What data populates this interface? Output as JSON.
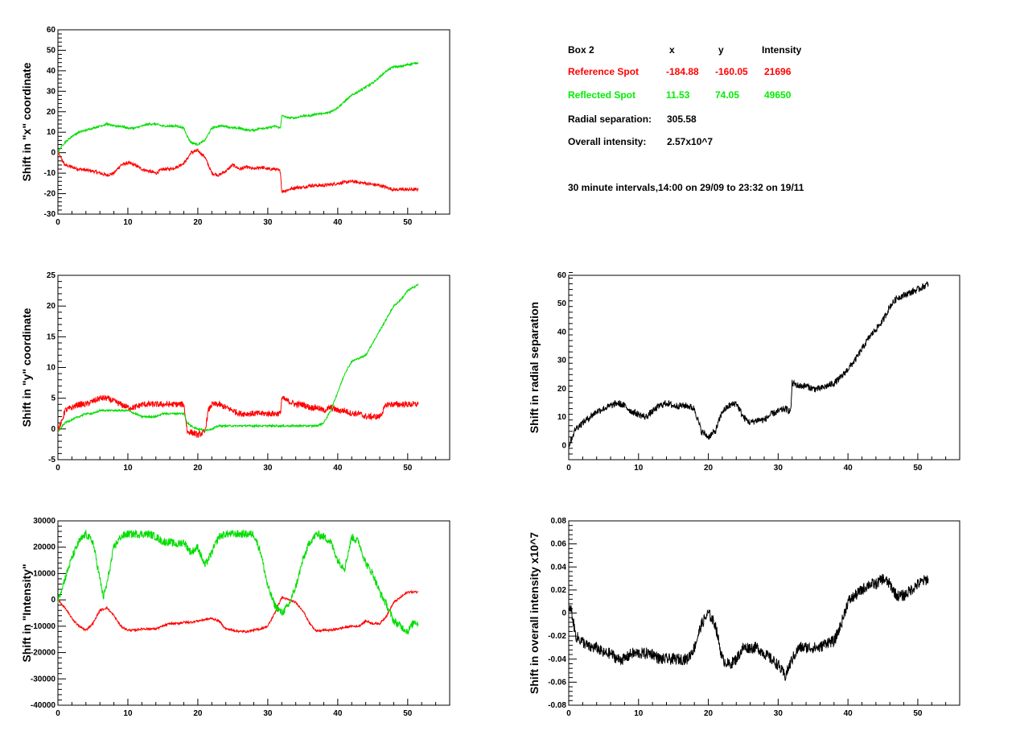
{
  "info": {
    "header": {
      "label": "Box 2",
      "x": "x",
      "y": "y",
      "intensity": "Intensity"
    },
    "reference": {
      "label": "Reference Spot",
      "x": "-184.88",
      "y": "-160.05",
      "intensity": "21696",
      "color": "#ff0000"
    },
    "reflected": {
      "label": "Reflected Spot",
      "x": "11.53",
      "y": "74.05",
      "intensity": "49650",
      "color": "#00ee00"
    },
    "radial": {
      "label": "Radial separation:",
      "value": "305.58"
    },
    "overall": {
      "label": "Overall intensity:",
      "value": "2.57x10^7"
    },
    "interval": "30 minute intervals,14:00 on 29/09 to 23:32 on 19/11"
  },
  "chart_data": [
    {
      "type": "line",
      "ylabel": "Shift in \"x\" coordinate",
      "xlim": [
        0,
        56
      ],
      "ylim": [
        -30,
        60
      ],
      "xticks": [
        0,
        10,
        20,
        30,
        40,
        50
      ],
      "yticks": [
        -30,
        -20,
        -10,
        0,
        10,
        20,
        30,
        40,
        50,
        60
      ],
      "series": [
        {
          "color": "#ff0000",
          "noise": 0.8,
          "x": [
            0,
            1,
            3,
            5,
            7,
            8,
            9,
            10,
            11,
            12,
            13,
            14,
            15,
            16,
            17,
            18,
            18.5,
            19,
            20,
            21,
            21.5,
            22,
            23,
            24,
            25,
            26,
            27,
            28,
            29,
            30,
            31,
            31.8,
            32,
            33,
            34,
            35,
            36,
            38,
            40,
            42,
            44,
            46,
            48,
            50,
            51.5
          ],
          "y": [
            0,
            -6,
            -8,
            -9,
            -11,
            -10,
            -6,
            -5,
            -6,
            -8,
            -9,
            -10,
            -8,
            -8,
            -7,
            -5,
            -3,
            0,
            1,
            -2,
            -6,
            -10,
            -11,
            -9,
            -6,
            -8,
            -7,
            -8,
            -7,
            -8,
            -8,
            -9,
            -19,
            -18,
            -17,
            -17,
            -16,
            -16,
            -15,
            -14,
            -15,
            -16,
            -18,
            -18,
            -18
          ]
        },
        {
          "color": "#00dd00",
          "noise": 0.5,
          "x": [
            0,
            0.5,
            1,
            2,
            3,
            4,
            5,
            6,
            7,
            8,
            9,
            10,
            11,
            12,
            13,
            14,
            15,
            16,
            17,
            18,
            18.5,
            19,
            20,
            21,
            22,
            23,
            24,
            25,
            26,
            27,
            28,
            29,
            30,
            31,
            31.8,
            32,
            33,
            34,
            35,
            36,
            37,
            38,
            39,
            40,
            41,
            42,
            43,
            44,
            45,
            46,
            47,
            48,
            49,
            50,
            51.5
          ],
          "y": [
            0,
            3,
            5,
            8,
            10,
            11,
            12,
            13,
            14,
            13,
            13,
            12,
            12,
            13,
            14,
            14,
            13,
            13,
            13,
            12,
            8,
            5,
            4,
            6,
            12,
            13,
            13,
            12,
            12,
            11,
            11,
            12,
            12,
            13,
            12,
            18,
            17,
            17,
            18,
            18,
            19,
            19,
            20,
            22,
            25,
            28,
            30,
            32,
            34,
            37,
            40,
            42,
            42,
            43,
            44
          ]
        }
      ]
    },
    {
      "type": "line",
      "ylabel": "Shift in \"y\" coordinate",
      "xlim": [
        0,
        56
      ],
      "ylim": [
        -5,
        25
      ],
      "xticks": [
        0,
        10,
        20,
        30,
        40,
        50
      ],
      "yticks": [
        -5,
        0,
        5,
        10,
        15,
        20,
        25
      ],
      "series": [
        {
          "color": "#ff0000",
          "noise": 0.5,
          "x": [
            0,
            0.5,
            1,
            2,
            3,
            4,
            5,
            6,
            7,
            8,
            9,
            10,
            11,
            12,
            13,
            14,
            15,
            16,
            17,
            18,
            18.5,
            19,
            20,
            21,
            21.5,
            22,
            23,
            24,
            25,
            26,
            27,
            28,
            29,
            30,
            31,
            31.8,
            32,
            33,
            34,
            35,
            36,
            37,
            38,
            39,
            40,
            41,
            42,
            43,
            44,
            45,
            46,
            47,
            48,
            49,
            50,
            51.5
          ],
          "y": [
            0,
            1,
            3,
            3.5,
            4,
            4,
            4.5,
            5,
            5,
            4.5,
            4,
            3.5,
            3.5,
            4,
            4,
            4,
            4,
            4,
            4,
            4,
            -0.5,
            -0.5,
            -1,
            -0.5,
            3,
            4,
            4,
            3.5,
            3,
            2.5,
            2.5,
            2.5,
            2.5,
            2.5,
            2.5,
            2.5,
            5,
            4.5,
            4,
            4,
            3.5,
            3.5,
            3,
            3.5,
            3,
            3,
            2.5,
            2.5,
            2,
            2,
            2,
            4,
            4,
            4,
            4,
            4
          ]
        },
        {
          "color": "#00dd00",
          "noise": 0.15,
          "x": [
            0,
            1,
            2,
            3,
            4,
            5,
            6,
            7,
            8,
            9,
            10,
            11,
            12,
            13,
            14,
            15,
            16,
            17,
            18,
            18.5,
            19,
            20,
            21,
            22,
            23,
            24,
            25,
            26,
            27,
            28,
            29,
            30,
            31,
            32,
            33,
            34,
            35,
            36,
            37,
            38,
            39,
            40,
            41,
            42,
            43,
            44,
            45,
            46,
            47,
            48,
            49,
            50,
            51.5
          ],
          "y": [
            -0.5,
            1,
            1.5,
            2,
            2.5,
            2.5,
            3,
            3,
            3,
            3,
            3,
            2.5,
            2,
            2,
            2,
            2.5,
            2.5,
            2.5,
            2.5,
            1,
            0.5,
            0,
            -0.2,
            0,
            0.5,
            0.5,
            0.5,
            0.5,
            0.5,
            0.5,
            0.5,
            0.5,
            0.5,
            0.5,
            0.5,
            0.5,
            0.5,
            0.5,
            0.5,
            1,
            3,
            6,
            9,
            11,
            11.5,
            12,
            14,
            16,
            18,
            20,
            21,
            22.5,
            23.5
          ]
        }
      ]
    },
    {
      "type": "line",
      "ylabel": "Shift in \"Intensity\"",
      "xlim": [
        0,
        56
      ],
      "ylim": [
        -40000,
        30000
      ],
      "xticks": [
        0,
        10,
        20,
        30,
        40,
        50
      ],
      "yticks": [
        -40000,
        -30000,
        -20000,
        -10000,
        0,
        10000,
        20000,
        30000
      ],
      "series": [
        {
          "color": "#ff0000",
          "noise": 400,
          "x": [
            0,
            1,
            2,
            3,
            4,
            5,
            6,
            7,
            8,
            9,
            10,
            11,
            12,
            13,
            14,
            15,
            16,
            17,
            18,
            19,
            20,
            21,
            22,
            23,
            24,
            25,
            26,
            27,
            28,
            29,
            30,
            31,
            32,
            33,
            34,
            35,
            36,
            37,
            38,
            39,
            40,
            41,
            42,
            43,
            44,
            45,
            46,
            47,
            48,
            49,
            50,
            51.5
          ],
          "y": [
            0,
            -3000,
            -7000,
            -10000,
            -11500,
            -9000,
            -4000,
            -3000,
            -6000,
            -10000,
            -11500,
            -11500,
            -11000,
            -11000,
            -11000,
            -10000,
            -9000,
            -9000,
            -8500,
            -8500,
            -8000,
            -7500,
            -7000,
            -8000,
            -11000,
            -11500,
            -12000,
            -12000,
            -11500,
            -11000,
            -10000,
            -5000,
            1000,
            0,
            -1000,
            -4000,
            -9000,
            -12000,
            -11500,
            -11500,
            -11000,
            -10500,
            -10000,
            -10000,
            -8000,
            -9000,
            -9000,
            -6000,
            -1000,
            1000,
            3000,
            3000
          ]
        },
        {
          "color": "#00dd00",
          "noise": 1500,
          "x": [
            0,
            1,
            2,
            3,
            4,
            5,
            6,
            6.5,
            7,
            8,
            9,
            10,
            11,
            12,
            13,
            14,
            15,
            16,
            17,
            18,
            19,
            20,
            21,
            22,
            23,
            24,
            25,
            26,
            27,
            28,
            29,
            30,
            31,
            32,
            33,
            34,
            35,
            36,
            37,
            38,
            39,
            40,
            41,
            42,
            43,
            44,
            45,
            46,
            47,
            48,
            49,
            50,
            51,
            51.5
          ],
          "y": [
            0,
            8000,
            16000,
            22000,
            25000,
            22000,
            8000,
            1000,
            6000,
            20000,
            24000,
            25000,
            25000,
            25000,
            25000,
            24000,
            22000,
            22000,
            21000,
            22000,
            18000,
            20000,
            13000,
            18000,
            24000,
            25000,
            25000,
            25000,
            25000,
            25000,
            18000,
            5000,
            -2000,
            -5000,
            -2000,
            5000,
            15000,
            22000,
            25000,
            24000,
            22000,
            15000,
            12000,
            24000,
            22000,
            14000,
            10000,
            3000,
            -2000,
            -8000,
            -10000,
            -12000,
            -8000,
            -9000
          ]
        }
      ]
    },
    {
      "type": "line",
      "ylabel": "Shift in radial separation",
      "xlim": [
        0,
        56
      ],
      "ylim": [
        -5,
        60
      ],
      "xticks": [
        0,
        10,
        20,
        30,
        40,
        50
      ],
      "yticks": [
        0,
        10,
        20,
        30,
        40,
        50,
        60
      ],
      "series": [
        {
          "color": "#000000",
          "noise": 1.2,
          "x": [
            0,
            0.5,
            1,
            2,
            3,
            4,
            5,
            6,
            7,
            8,
            9,
            10,
            11,
            12,
            13,
            14,
            15,
            16,
            17,
            18,
            18.5,
            19,
            20,
            21,
            22,
            23,
            24,
            25,
            26,
            27,
            28,
            29,
            30,
            31,
            31.8,
            32,
            33,
            34,
            35,
            36,
            37,
            38,
            39,
            40,
            41,
            42,
            43,
            44,
            45,
            46,
            47,
            48,
            49,
            50,
            51.5
          ],
          "y": [
            0,
            3,
            6,
            8,
            10,
            12,
            13,
            14,
            15,
            14,
            12,
            11,
            10,
            12,
            14,
            15,
            14,
            14,
            14,
            13,
            9,
            5,
            3,
            5,
            12,
            14,
            15,
            10,
            8,
            9,
            9,
            11,
            12,
            13,
            12,
            22,
            21,
            21,
            20,
            20,
            21,
            22,
            24,
            27,
            30,
            34,
            38,
            41,
            44,
            49,
            52,
            53,
            54,
            55,
            57
          ]
        }
      ]
    },
    {
      "type": "line",
      "ylabel": "Shift in overall intensity x10^7",
      "xlim": [
        0,
        56
      ],
      "ylim": [
        -0.08,
        0.08
      ],
      "xticks": [
        0,
        10,
        20,
        30,
        40,
        50
      ],
      "yticks": [
        -0.08,
        -0.06,
        -0.04,
        -0.02,
        0,
        0.02,
        0.04,
        0.06,
        0.08
      ],
      "series": [
        {
          "color": "#000000",
          "noise": 0.005,
          "x": [
            0,
            0.3,
            1,
            2,
            3,
            4,
            5,
            6,
            7,
            8,
            9,
            10,
            11,
            12,
            13,
            14,
            15,
            16,
            17,
            18,
            19,
            20,
            21,
            22,
            23,
            24,
            25,
            26,
            27,
            28,
            29,
            30,
            31,
            32,
            33,
            34,
            35,
            36,
            37,
            38,
            39,
            40,
            41,
            42,
            43,
            44,
            45,
            46,
            47,
            48,
            49,
            50,
            51.5
          ],
          "y": [
            0,
            0.005,
            -0.02,
            -0.025,
            -0.03,
            -0.03,
            -0.035,
            -0.035,
            -0.04,
            -0.04,
            -0.035,
            -0.035,
            -0.035,
            -0.035,
            -0.04,
            -0.04,
            -0.04,
            -0.04,
            -0.04,
            -0.03,
            -0.01,
            0,
            -0.01,
            -0.04,
            -0.045,
            -0.04,
            -0.03,
            -0.03,
            -0.03,
            -0.035,
            -0.04,
            -0.045,
            -0.055,
            -0.04,
            -0.03,
            -0.03,
            -0.03,
            -0.03,
            -0.025,
            -0.025,
            -0.01,
            0.01,
            0.015,
            0.02,
            0.025,
            0.025,
            0.03,
            0.025,
            0.015,
            0.015,
            0.02,
            0.025,
            0.03
          ]
        }
      ]
    }
  ]
}
